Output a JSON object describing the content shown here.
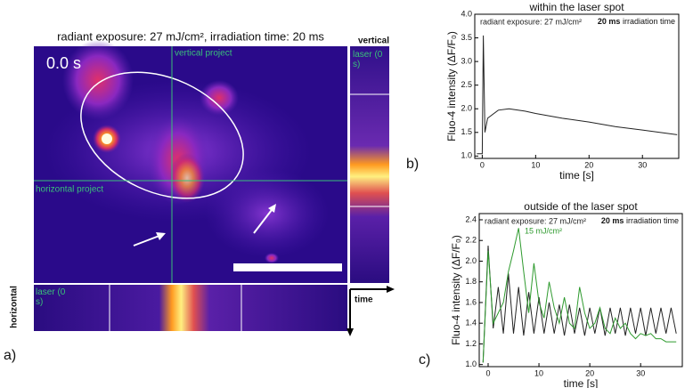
{
  "figure": {
    "title": "radiant exposure: 27 mJ/cm², irradiation time: 20 ms",
    "time_stamp": "0.0 s",
    "vertical_project": "vertical project",
    "horizontal_project": "horizontal project",
    "vertical": "vertical",
    "horizontal": "horizontal",
    "laser_vertical": "laser (0 s)",
    "laser_horizontal": "laser (0 s)",
    "time_axis": "time",
    "panel_a": "a)",
    "panel_b": "b)",
    "panel_c": "c)"
  },
  "chart_data": [
    {
      "type": "line",
      "title": "within the laser spot",
      "x_label": "time [s]",
      "y_label": "Fluo-4 intensity (ΔF/F₀)",
      "annotation_bold": "20 ms",
      "annotation": "irradiation time",
      "x": [
        -1,
        0,
        0.2,
        0.5,
        1,
        3,
        5,
        8,
        10,
        15,
        20,
        25,
        30,
        36.5
      ],
      "series": [
        {
          "name": "radiant exposure: 27 mJ/cm²",
          "color": "#222222",
          "values": [
            1.05,
            1.05,
            3.55,
            1.5,
            1.8,
            1.97,
            2.0,
            1.95,
            1.9,
            1.8,
            1.72,
            1.62,
            1.55,
            1.45
          ]
        }
      ],
      "xlim": [
        -1.4,
        36.8
      ],
      "xticks": [
        0,
        10,
        20,
        30
      ],
      "ylim": [
        0.95,
        4.0
      ],
      "yticks": [
        {
          "value": 1,
          "label": "1.0"
        },
        1.5,
        {
          "value": 2,
          "label": "2.0"
        },
        2.5,
        {
          "value": 3,
          "label": "3.0"
        },
        3.5,
        {
          "value": 4,
          "label": "4.0"
        }
      ]
    },
    {
      "type": "line",
      "title": "outside of the laser spot",
      "x_label": "time [s]",
      "y_label": "Fluo-4 intensity (ΔF/F₀)",
      "annotation_bold": "20 ms",
      "annotation": "irradiation time",
      "x": [
        -1,
        0,
        1,
        2,
        3,
        4,
        5,
        6,
        7,
        8,
        9,
        10,
        11,
        12,
        13,
        14,
        15,
        16,
        17,
        18,
        19,
        20,
        21,
        22,
        23,
        24,
        25,
        26,
        27,
        28,
        29,
        30,
        31,
        32,
        33,
        34,
        35,
        36,
        37
      ],
      "series": [
        {
          "name": "radiant exposure: 27 mJ/cm²",
          "color": "#222222",
          "values": [
            1.02,
            2.15,
            1.35,
            1.75,
            1.3,
            1.88,
            1.3,
            1.75,
            1.28,
            1.7,
            1.3,
            1.65,
            1.3,
            1.6,
            1.3,
            1.58,
            1.28,
            1.58,
            1.3,
            1.55,
            1.28,
            1.55,
            1.3,
            1.55,
            1.28,
            1.55,
            1.3,
            1.55,
            1.28,
            1.55,
            1.3,
            1.55,
            1.28,
            1.55,
            1.3,
            1.55,
            1.3,
            1.55,
            1.3
          ]
        },
        {
          "name": "15 mJ/cm²",
          "color": "#2e9a2e",
          "values": [
            1.02,
            2.1,
            1.4,
            1.5,
            1.6,
            1.9,
            2.1,
            2.32,
            1.9,
            1.5,
            1.98,
            1.6,
            1.45,
            1.8,
            1.55,
            1.4,
            1.65,
            1.4,
            1.35,
            1.75,
            1.5,
            1.35,
            1.4,
            1.55,
            1.35,
            1.3,
            1.45,
            1.35,
            1.4,
            1.3,
            1.25,
            1.3,
            1.28,
            1.3,
            1.25,
            1.25,
            1.22,
            1.22,
            1.22
          ]
        }
      ],
      "xlim": [
        -1.75,
        38.2
      ],
      "xticks": [
        0,
        10,
        20,
        30
      ],
      "ylim": [
        0.98,
        2.46
      ],
      "yticks": [
        {
          "value": 1,
          "label": "1.0"
        },
        1.2,
        1.4,
        1.6,
        1.8,
        {
          "value": 2,
          "label": "2.0"
        },
        2.2,
        2.4
      ]
    }
  ]
}
